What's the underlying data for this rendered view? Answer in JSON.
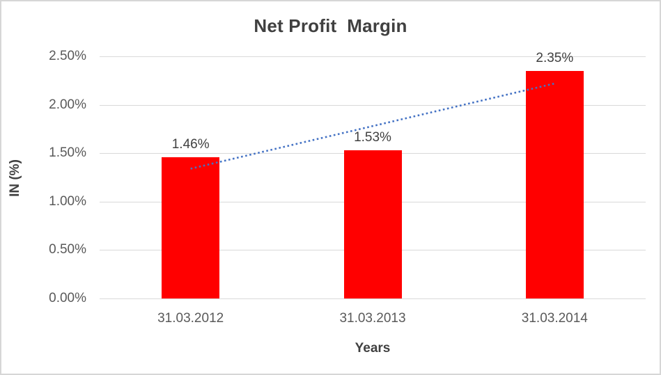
{
  "chart_data": {
    "type": "bar",
    "title": "Net Profit  Margin",
    "categories": [
      "31.03.2012",
      "31.03.2013",
      "31.03.2014"
    ],
    "values": [
      1.46,
      1.53,
      2.35
    ],
    "data_labels": [
      "1.46%",
      "1.53%",
      "2.35%"
    ],
    "xlabel": "Years",
    "ylabel": "IN (%)",
    "ylim": [
      0,
      2.5
    ],
    "ytick_step": 0.5,
    "ytick_labels": [
      "0.00%",
      "0.50%",
      "1.00%",
      "1.50%",
      "2.00%",
      "2.50%"
    ],
    "grid": true,
    "legend": "none",
    "bar_color": "#ff0000",
    "gridline_color": "#d9d9d9",
    "tick_text_color": "#595959",
    "label_text_color": "#404040",
    "trendline": {
      "type": "linear",
      "style": "dotted",
      "color": "#4472c4",
      "start_value": 1.34,
      "end_value": 2.22
    }
  }
}
